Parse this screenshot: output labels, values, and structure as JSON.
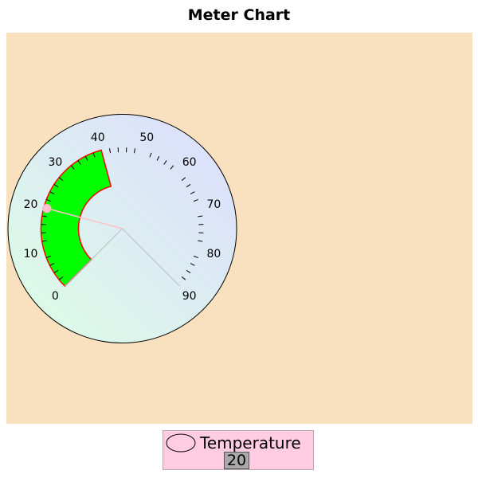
{
  "chart_data": {
    "type": "meter",
    "title": "Meter Chart",
    "series_name": "Temperature",
    "value": 20,
    "range": [
      0,
      90
    ],
    "tick_labels": [
      "0",
      "10",
      "20",
      "30",
      "40",
      "50",
      "60",
      "70",
      "80",
      "90"
    ],
    "highlight_interval": [
      0,
      40
    ],
    "colors": {
      "plot_background": "#f9e0bf",
      "interval_fill": "#00ff00",
      "interval_outline": "#ff0000",
      "needle": "#ffc0cb",
      "legend_background": "#ffcce2",
      "value_box": "#a9a9a9"
    }
  }
}
